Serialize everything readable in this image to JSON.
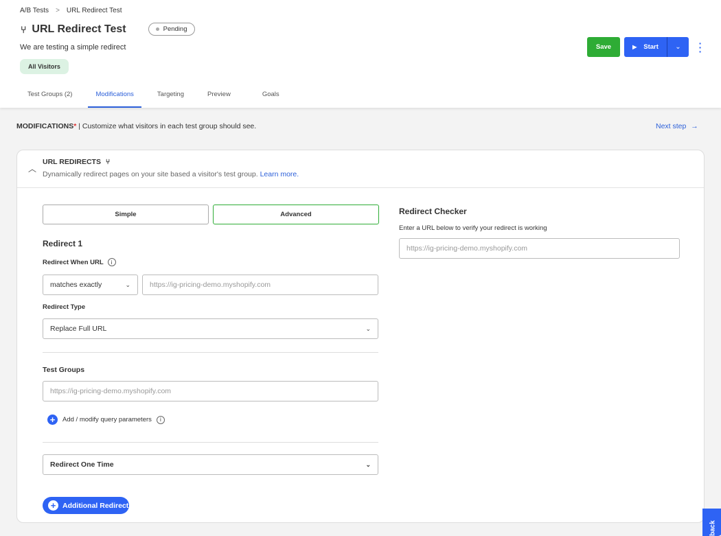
{
  "breadcrumb": {
    "root": "A/B Tests",
    "separator": ">",
    "current": "URL Redirect Test"
  },
  "header": {
    "icon": "redirect-fork-icon",
    "title": "URL Redirect Test",
    "status": "Pending",
    "description": "We are testing a simple redirect",
    "audience": "All Visitors"
  },
  "actions": {
    "save": "Save",
    "start": "Start",
    "more": "⋮"
  },
  "tabs": [
    {
      "label": "Test Groups (2)"
    },
    {
      "label": "Modifications",
      "active": true
    },
    {
      "label": "Targeting"
    },
    {
      "label": "Preview"
    },
    {
      "label": "Goals"
    }
  ],
  "modbar": {
    "title": "MODIFICATIONS",
    "required": "*",
    "text": "| Customize what visitors in each test group should see.",
    "next": "Next step"
  },
  "card": {
    "title": "URL REDIRECTS",
    "subtitle": "Dynamically redirect pages on your site based a visitor's test group.",
    "learn_more": "Learn more."
  },
  "mode": {
    "simple": "Simple",
    "advanced": "Advanced",
    "selected": "Advanced"
  },
  "redirect": {
    "heading": "Redirect 1",
    "when_label": "Redirect When URL",
    "match": "matches exactly",
    "url_placeholder": "https://ig-pricing-demo.myshopify.com",
    "type_label": "Redirect Type",
    "type": "Replace Full URL",
    "groups_label": "Test Groups",
    "groups_placeholder": "https://ig-pricing-demo.myshopify.com",
    "query_params": "Add / modify query parameters",
    "frequency": "Redirect One Time",
    "additional": "Additional Redirect"
  },
  "checker": {
    "title": "Redirect Checker",
    "hint": "Enter a URL below to verify your redirect is working",
    "placeholder": "https://ig-pricing-demo.myshopify.com"
  },
  "feedback": "back",
  "colors": {
    "accent": "#2e63f4",
    "save": "#2eac35",
    "audience": "#dcf2e3"
  }
}
